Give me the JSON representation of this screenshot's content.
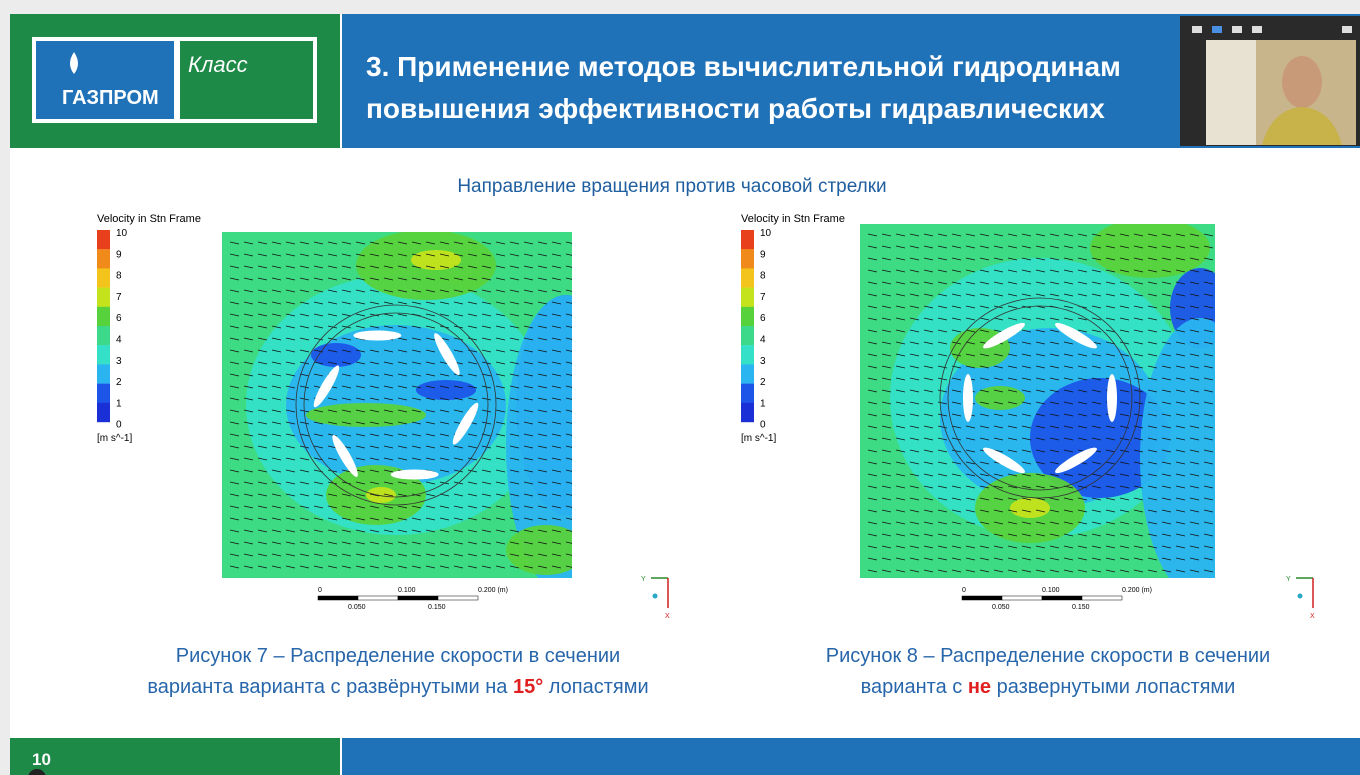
{
  "header": {
    "logo_brand": "ГАЗПРОМ",
    "logo_class": "Класс",
    "title_lines": [
      "3. Применение методов вычислительной гидродинам",
      "повышения эффективности работы гидравлических"
    ]
  },
  "subtitle": "Направление вращения против часовой стрелки",
  "figures": [
    {
      "legend": {
        "title": "Velocity in Stn Frame",
        "levels": [
          "10",
          "9",
          "8",
          "7",
          "6",
          "4",
          "3",
          "2",
          "1",
          "0"
        ],
        "unit": "[m s^-1]"
      },
      "scale": {
        "top": [
          "0",
          "0.100",
          "0.200 (m)"
        ],
        "bottom": [
          "0.050",
          "0.150"
        ]
      },
      "axes": {
        "y": "Y",
        "x": "X"
      },
      "caption": {
        "line1": "Рисунок 7 – Распределение скорости в сечении",
        "line2": [
          "варианта варианта с развёрнутыми на ",
          "15°",
          " лопастями"
        ]
      }
    },
    {
      "legend": {
        "title": "Velocity in Stn Frame",
        "levels": [
          "10",
          "9",
          "8",
          "7",
          "6",
          "4",
          "3",
          "2",
          "1",
          "0"
        ],
        "unit": "[m s^-1]"
      },
      "scale": {
        "top": [
          "0",
          "0.100",
          "0.200 (m)"
        ],
        "bottom": [
          "0.050",
          "0.150"
        ]
      },
      "axes": {
        "y": "Y",
        "x": "X"
      },
      "caption": {
        "line1": "Рисунок 8 – Распределение скорости в сечении",
        "line2": [
          "варианта с ",
          "не",
          " развернутыми лопастями"
        ]
      }
    }
  ],
  "footer": {
    "page": "10"
  }
}
